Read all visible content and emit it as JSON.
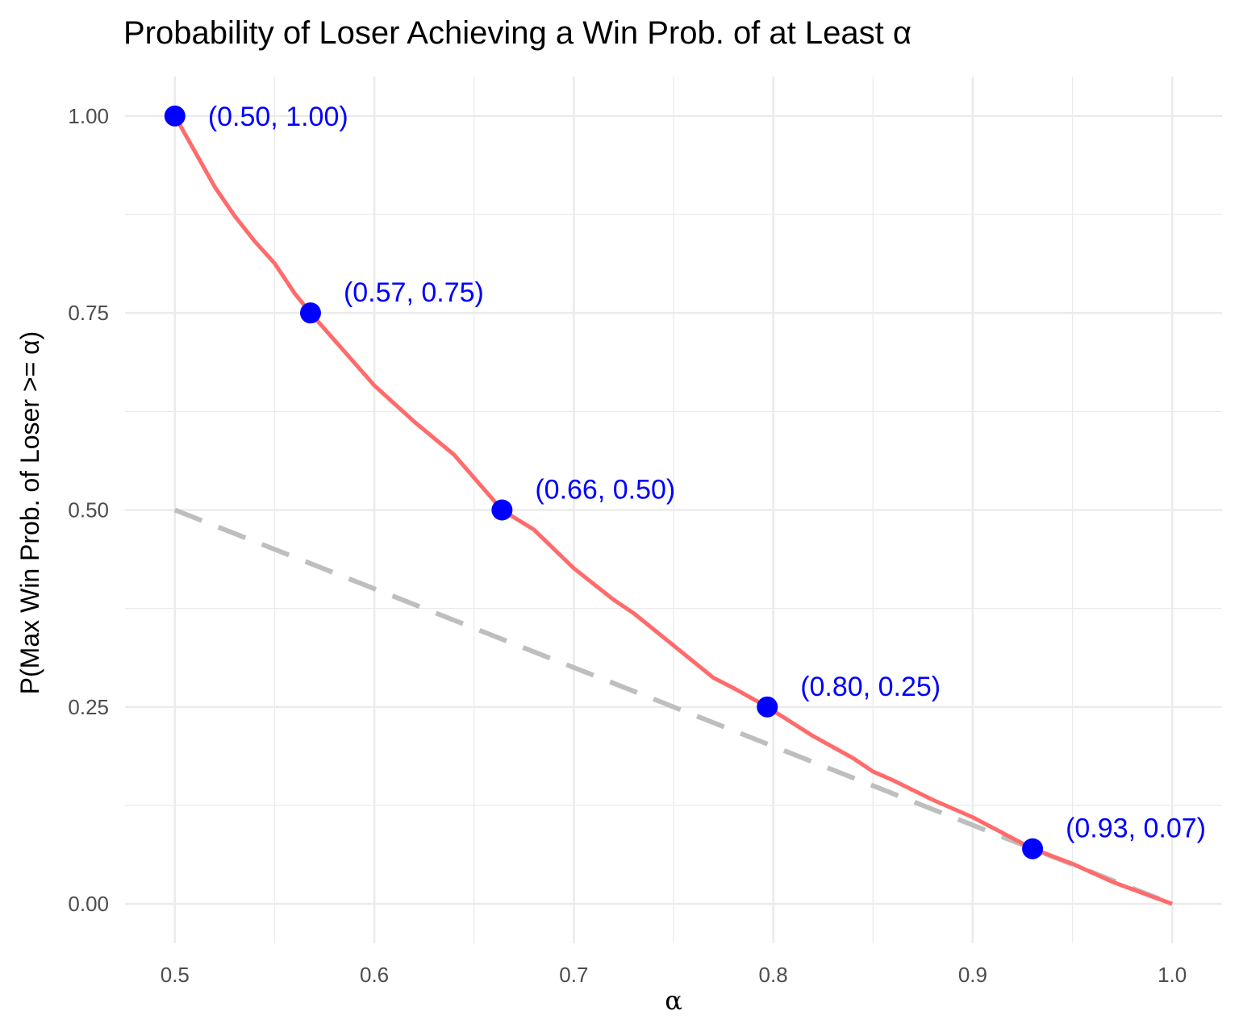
{
  "chart_data": {
    "type": "line",
    "title": "Probability of Loser Achieving a Win Prob. of at Least α",
    "xlabel": "α",
    "ylabel": "P(Max Win Prob. of Loser >= α)",
    "xlim": [
      0.475,
      1.025
    ],
    "ylim": [
      -0.05,
      1.05
    ],
    "x_ticks": [
      "0.5",
      "0.6",
      "0.7",
      "0.8",
      "0.9",
      "1.0"
    ],
    "y_ticks": [
      "0.00",
      "0.25",
      "0.50",
      "0.75",
      "1.00"
    ],
    "grid": true,
    "series": [
      {
        "style": "solid",
        "color": "#ff6b6b",
        "x": [
          0.5,
          0.52,
          0.53,
          0.54,
          0.55,
          0.56,
          0.568,
          0.6,
          0.62,
          0.64,
          0.664,
          0.68,
          0.7,
          0.72,
          0.73,
          0.75,
          0.77,
          0.78,
          0.797,
          0.82,
          0.84,
          0.85,
          0.86,
          0.88,
          0.9,
          0.93,
          0.95,
          0.97,
          1.0
        ],
        "y": [
          1.0,
          0.91,
          0.873,
          0.841,
          0.813,
          0.775,
          0.75,
          0.658,
          0.612,
          0.57,
          0.5,
          0.475,
          0.426,
          0.386,
          0.369,
          0.328,
          0.287,
          0.274,
          0.25,
          0.213,
          0.185,
          0.168,
          0.157,
          0.132,
          0.11,
          0.07,
          0.051,
          0.028,
          0.0
        ]
      },
      {
        "style": "dashed",
        "color": "#bebebe",
        "x": [
          0.5,
          1.0
        ],
        "y": [
          0.5,
          0.0
        ]
      }
    ],
    "points": {
      "color": "#0000ff",
      "x": [
        0.5,
        0.568,
        0.664,
        0.797,
        0.93
      ],
      "y": [
        1.0,
        0.75,
        0.5,
        0.25,
        0.07
      ],
      "labels": [
        "(0.50, 1.00)",
        "(0.57, 0.75)",
        "(0.66, 0.50)",
        "(0.80, 0.25)",
        "(0.93, 0.07)"
      ]
    }
  }
}
